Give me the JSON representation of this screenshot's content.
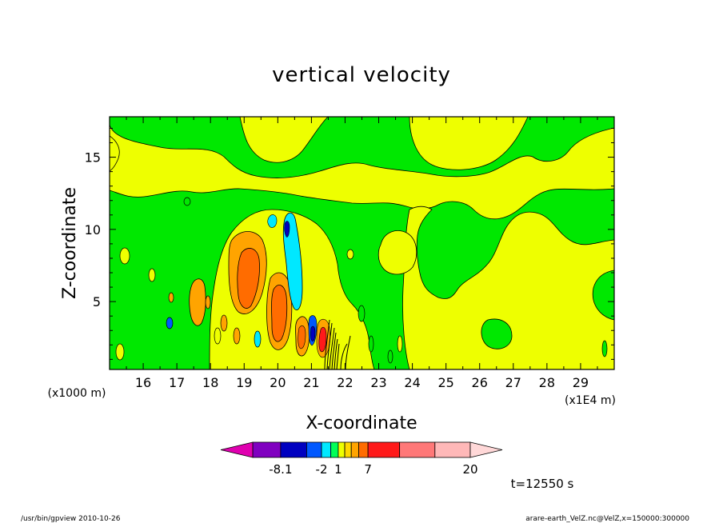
{
  "footer": {
    "left": "/usr/bin/gpview   2010-10-26",
    "right": "arare-earth_VelZ.nc@VelZ,x=150000:300000"
  },
  "chart_data": {
    "type": "heatmap",
    "title": "vertical velocity",
    "xlabel": "X-coordinate",
    "ylabel": "Z-coordinate",
    "x_unit_left": "(x1000 m)",
    "x_unit_right": "(x1E4 m)",
    "xlim": [
      15.0,
      30.0
    ],
    "ylim": [
      0.3,
      17.8
    ],
    "x_ticks": [
      16,
      17,
      18,
      19,
      20,
      21,
      22,
      23,
      24,
      25,
      26,
      27,
      28,
      29
    ],
    "y_ticks": [
      5,
      10,
      15
    ],
    "time_label": "t=12550 s",
    "colorbar": {
      "tick_labels": [
        "-8.1",
        "-2",
        "1",
        "7",
        "20"
      ],
      "colors": [
        "#e000b0",
        "#8000c0",
        "#0000c0",
        "#0058ff",
        "#00e8ff",
        "#00ff58",
        "#eeff00",
        "#ffd800",
        "#ffa400",
        "#ff6c00",
        "#ff1a1a",
        "#ff7878",
        "#ffb8b8",
        "#ffd8d8"
      ]
    },
    "regions": [
      {
        "level": "green",
        "x": 22.5,
        "y": 14.5,
        "w": 5.5,
        "h": 3.5
      },
      {
        "level": "yellow",
        "x": 24.6,
        "y": 4.5,
        "w": 3.0,
        "h": 7.0
      },
      {
        "level": "yellow",
        "x": 19.7,
        "y": 6.2,
        "w": 1.7,
        "h": 7.0
      },
      {
        "level": "orange",
        "x": 19.3,
        "y": 7.2,
        "w": 1.1,
        "h": 5.5
      },
      {
        "level": "deep-orange",
        "x": 19.3,
        "y": 6.8,
        "w": 0.6,
        "h": 3.5
      },
      {
        "level": "orange",
        "x": 20.1,
        "y": 4.3,
        "w": 0.6,
        "h": 3.8
      },
      {
        "level": "deep-orange",
        "x": 20.1,
        "y": 4.2,
        "w": 0.35,
        "h": 2.4
      },
      {
        "level": "cyan",
        "x": 20.7,
        "y": 7.8,
        "w": 0.45,
        "h": 6.0
      },
      {
        "level": "blue",
        "x": 20.75,
        "y": 9.5,
        "w": 0.12,
        "h": 1.6
      },
      {
        "level": "red",
        "x": 21.45,
        "y": 2.3,
        "w": 0.25,
        "h": 2.2
      },
      {
        "level": "dark-blue",
        "x": 21.1,
        "y": 2.2,
        "w": 0.15,
        "h": 2.2
      }
    ]
  }
}
